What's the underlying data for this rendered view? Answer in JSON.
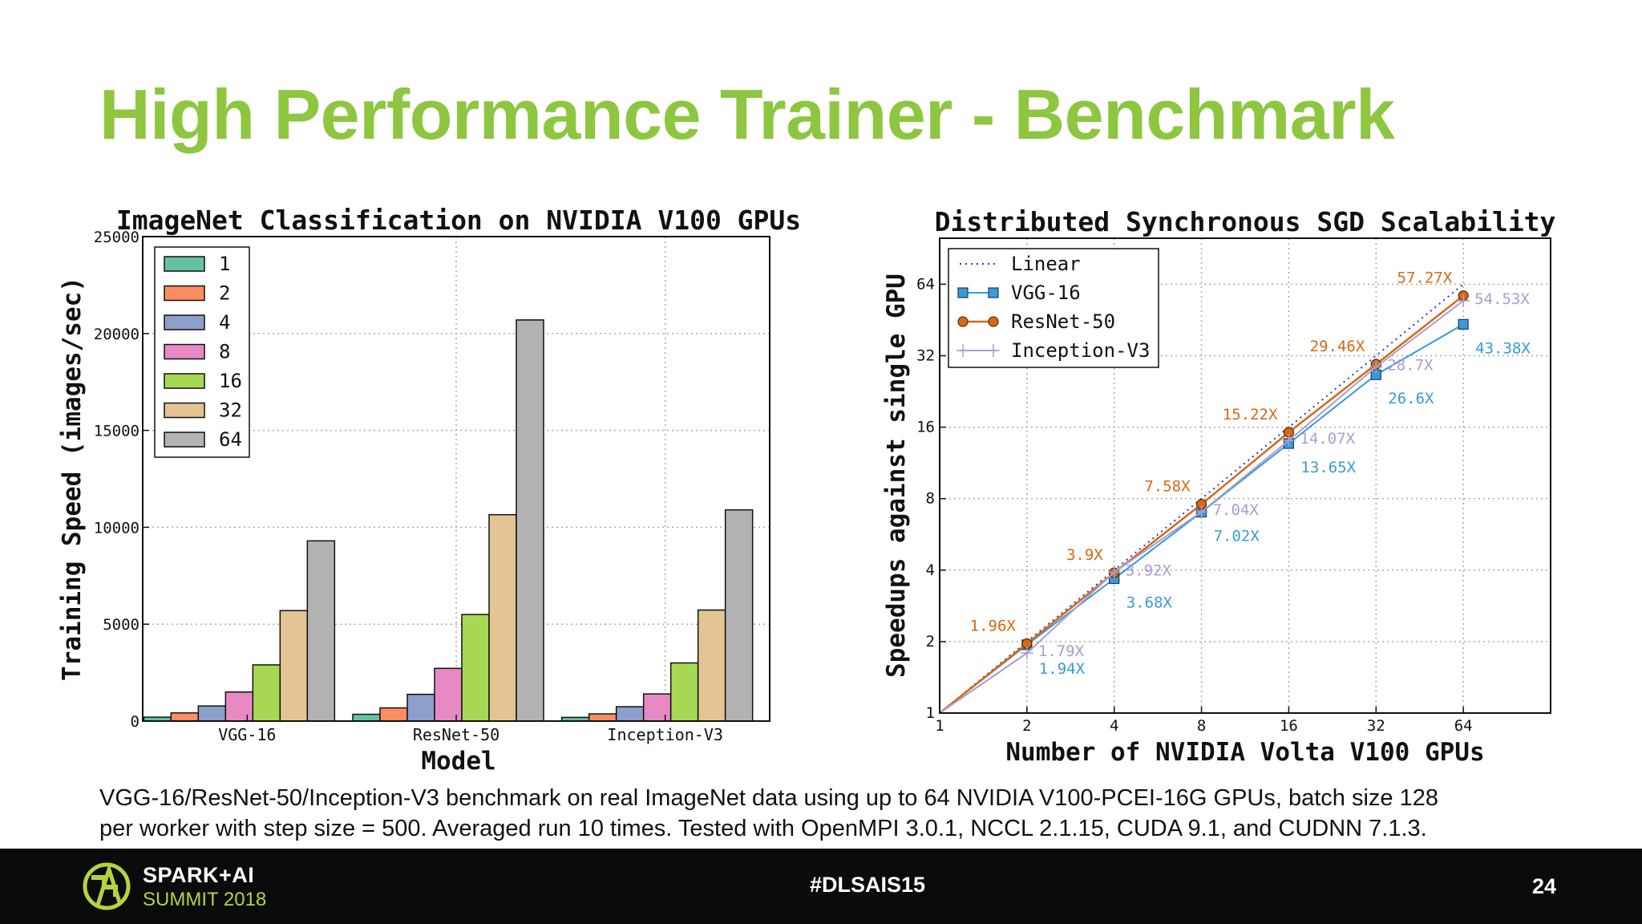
{
  "slide": {
    "title": "High Performance Trainer - Benchmark",
    "caption_line1": "VGG-16/ResNet-50/Inception-V3 benchmark on real ImageNet data using up to 64 NVIDIA V100-PCEI-16G GPUs, batch size 128",
    "caption_line2": "per worker with step size = 500. Averaged run 10 times. Tested with OpenMPI 3.0.1, NCCL 2.1.15, CUDA 9.1, and CUDNN 7.1.3."
  },
  "footer": {
    "brand_line1": "SPARK+AI",
    "brand_line2": "SUMMIT 2018",
    "hashtag": "#DLSAIS15",
    "page_number": "24",
    "logo_icon": "spark-ai-logo-icon",
    "brand_color": "#b5d33d"
  },
  "colors": {
    "title": "#8ec63f",
    "gpu_1": "#66c2a5",
    "gpu_2": "#fc8d62",
    "gpu_4": "#8da0cb",
    "gpu_8": "#e78ac3",
    "gpu_16": "#a6d854",
    "gpu_32": "#e5c494",
    "gpu_64": "#b3b3b3",
    "linear": "#3333cc",
    "vgg16": "#3a9ad9",
    "resnet50": "#d46a14",
    "inceptionv3": "#a99ed0"
  },
  "chart_data": [
    {
      "type": "bar",
      "title": "ImageNet Classification on NVIDIA V100 GPUs",
      "xlabel": "Model",
      "ylabel": "Training Speed (images/sec)",
      "categories": [
        "VGG-16",
        "ResNet-50",
        "Inception-V3"
      ],
      "ylim": [
        0,
        25000
      ],
      "yticks": [
        "0",
        "5000",
        "10000",
        "15000",
        "20000",
        "25000"
      ],
      "grid": true,
      "legend": "top-left",
      "series": [
        {
          "name": "1",
          "values": [
            200,
            350,
            190
          ]
        },
        {
          "name": "2",
          "values": [
            420,
            680,
            370
          ]
        },
        {
          "name": "4",
          "values": [
            780,
            1380,
            740
          ]
        },
        {
          "name": "8",
          "values": [
            1500,
            2720,
            1400
          ]
        },
        {
          "name": "16",
          "values": [
            2900,
            5500,
            3000
          ]
        },
        {
          "name": "32",
          "values": [
            5700,
            10650,
            5730
          ]
        },
        {
          "name": "64",
          "values": [
            9300,
            20700,
            10900
          ]
        }
      ]
    },
    {
      "type": "line",
      "title": "Distributed Synchronous SGD Scalability",
      "xlabel": "Number of NVIDIA Volta V100 GPUs",
      "ylabel": "Speedups against single GPU",
      "x": [
        1,
        2,
        4,
        8,
        16,
        32,
        64
      ],
      "xticks": [
        "1",
        "2",
        "4",
        "8",
        "16",
        "32",
        "64"
      ],
      "yticks": [
        "1",
        "2",
        "4",
        "8",
        "16",
        "32",
        "64"
      ],
      "xscale": "log2",
      "yscale": "log2",
      "xlim": [
        1,
        128
      ],
      "ylim": [
        1,
        100
      ],
      "grid": true,
      "legend": "top-left",
      "series": [
        {
          "name": "Linear",
          "values": [
            1,
            2,
            4,
            8,
            16,
            32,
            64
          ]
        },
        {
          "name": "VGG-16",
          "values": [
            1,
            1.94,
            3.68,
            7.02,
            13.65,
            26.6,
            43.38
          ],
          "labels": [
            "",
            "1.94X",
            "3.68X",
            "7.02X",
            "13.65X",
            "26.6X",
            "43.38X"
          ]
        },
        {
          "name": "ResNet-50",
          "values": [
            1,
            1.96,
            3.9,
            7.58,
            15.22,
            29.46,
            57.27
          ],
          "labels": [
            "",
            "1.96X",
            "3.9X",
            "7.58X",
            "15.22X",
            "29.46X",
            "57.27X"
          ]
        },
        {
          "name": "Inception-V3",
          "values": [
            1,
            1.79,
            3.92,
            7.04,
            14.07,
            28.7,
            54.53
          ],
          "labels": [
            "",
            "1.79X",
            "3.92X",
            "7.04X",
            "14.07X",
            "28.7X",
            "54.53X"
          ]
        }
      ]
    }
  ]
}
